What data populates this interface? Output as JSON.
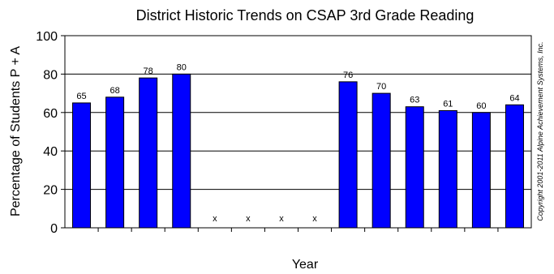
{
  "chart_data": {
    "type": "bar",
    "title": "District Historic Trends on CSAP 3rd Grade Reading",
    "xlabel": "Year",
    "ylabel": "Percentage of Students P + A",
    "ylim": [
      0,
      100
    ],
    "yticks": [
      0,
      20,
      40,
      60,
      80,
      100
    ],
    "grid": true,
    "bar_color": "#0000ff",
    "values": [
      65,
      68,
      78,
      80,
      null,
      null,
      null,
      null,
      76,
      70,
      63,
      61,
      60,
      64
    ],
    "missing_marker": "x",
    "copyright": "Copyright 2001-2011 Alpine Achievement Systems, Inc."
  }
}
